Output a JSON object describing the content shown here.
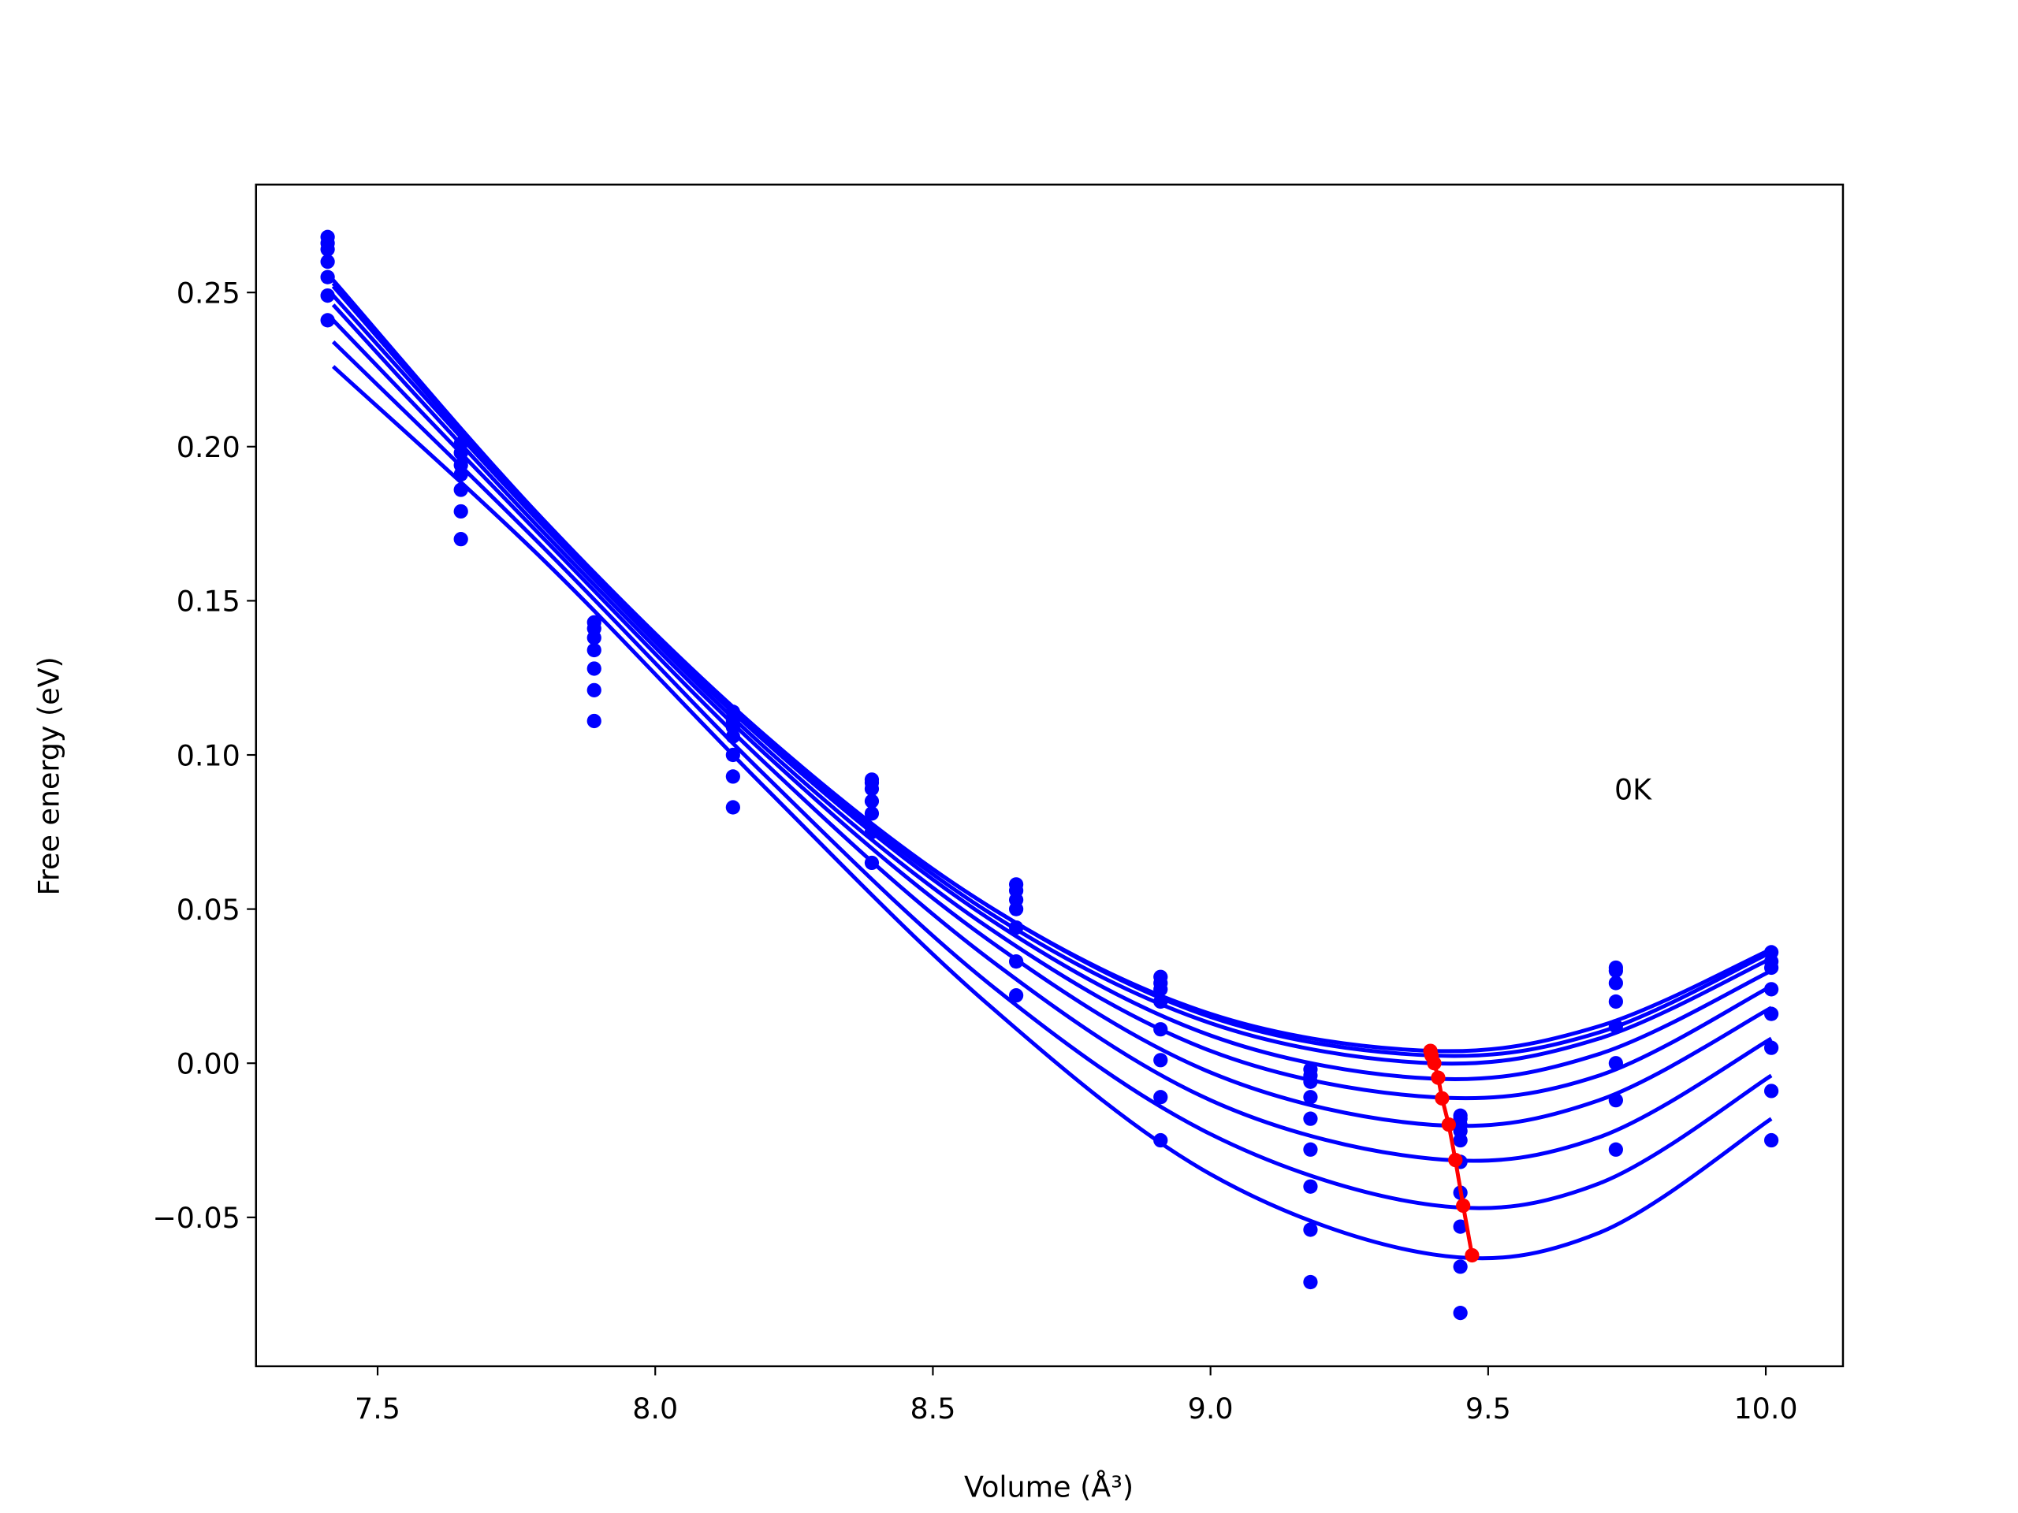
{
  "chart_data": {
    "type": "line",
    "xlabel": "Volume (Å³)",
    "ylabel": "Free energy (eV)",
    "annotation": "0K",
    "xlim": [
      7.281,
      10.139
    ],
    "ylim": [
      -0.0983,
      0.285
    ],
    "xticks": [
      7.5,
      {
        "value": 8,
        "label": "8.0"
      },
      8.5,
      {
        "value": 9,
        "label": "9.0"
      },
      9.5,
      {
        "value": 10,
        "label": "10.0"
      }
    ],
    "yticks": [
      {
        "value": -0.05,
        "label": "−0.05"
      },
      {
        "value": 0,
        "label": "0.00"
      },
      0.05,
      {
        "value": 0.1,
        "label": "0.10"
      },
      0.15,
      {
        "value": 0.2,
        "label": "0.20"
      },
      0.25
    ],
    "series": [
      {
        "style": "points",
        "color": "#0000ff",
        "x": [
          7.41,
          7.41,
          7.41,
          7.41,
          7.41,
          7.41,
          7.41,
          7.65,
          7.65,
          7.65,
          7.65,
          7.65,
          7.65,
          7.65,
          7.89,
          7.89,
          7.89,
          7.89,
          7.89,
          7.89,
          7.89,
          8.14,
          8.14,
          8.14,
          8.14,
          8.14,
          8.14,
          8.14,
          8.39,
          8.39,
          8.39,
          8.39,
          8.39,
          8.39,
          8.39,
          8.65,
          8.65,
          8.65,
          8.65,
          8.65,
          8.65,
          8.65,
          8.91,
          8.91,
          8.91,
          8.91,
          8.91,
          8.91,
          8.91,
          8.91,
          9.18,
          9.18,
          9.18,
          9.18,
          9.18,
          9.18,
          9.18,
          9.18,
          9.18,
          9.45,
          9.45,
          9.45,
          9.45,
          9.45,
          9.45,
          9.45,
          9.45,
          9.45,
          9.45,
          9.73,
          9.73,
          9.73,
          9.73,
          9.73,
          9.73,
          9.73,
          9.73,
          10.01,
          10.01,
          10.01,
          10.01,
          10.01,
          10.01,
          10.01,
          10.01
        ],
        "values": [
          0.268,
          0.266,
          0.264,
          0.26,
          0.255,
          0.249,
          0.241,
          0.201,
          0.198,
          0.194,
          0.191,
          0.186,
          0.179,
          0.17,
          0.143,
          0.141,
          0.138,
          0.134,
          0.128,
          0.121,
          0.111,
          0.114,
          0.111,
          0.109,
          0.106,
          0.1,
          0.093,
          0.083,
          0.092,
          0.091,
          0.089,
          0.085,
          0.081,
          0.075,
          0.065,
          0.058,
          0.056,
          0.053,
          0.05,
          0.044,
          0.033,
          0.022,
          0.028,
          0.026,
          0.024,
          0.02,
          0.011,
          0.001,
          -0.011,
          -0.025,
          -0.002,
          -0.004,
          -0.006,
          -0.011,
          -0.018,
          -0.028,
          -0.04,
          -0.054,
          -0.071,
          -0.017,
          -0.018,
          -0.02,
          -0.022,
          -0.025,
          -0.032,
          -0.042,
          -0.053,
          -0.066,
          -0.081,
          0.031,
          0.03,
          0.026,
          0.02,
          0.012,
          0.0,
          -0.012,
          -0.028,
          0.036,
          0.033,
          0.031,
          0.024,
          0.016,
          0.005,
          -0.009,
          -0.025
        ]
      },
      {
        "style": "line",
        "color": "#0000ff",
        "x": [
          7.42,
          7.8,
          8.2,
          8.6,
          9.0,
          9.4,
          9.7,
          10.01
        ],
        "values": [
          0.254,
          0.176,
          0.106,
          0.051,
          0.016,
          0.004,
          0.012,
          0.037
        ]
      },
      {
        "style": "line",
        "color": "#0000ff",
        "x": [
          7.42,
          7.8,
          8.2,
          8.6,
          9.0,
          9.4,
          9.7,
          10.01
        ],
        "values": [
          0.253,
          0.176,
          0.105,
          0.051,
          0.015,
          0.0025,
          0.01,
          0.036
        ]
      },
      {
        "style": "line",
        "color": "#0000ff",
        "x": [
          7.42,
          7.8,
          8.2,
          8.6,
          9.0,
          9.4,
          9.7,
          10.01
        ],
        "values": [
          0.253,
          0.175,
          0.105,
          0.049,
          0.013,
          0.0,
          0.008,
          0.034
        ]
      },
      {
        "style": "line",
        "color": "#0000ff",
        "x": [
          7.42,
          7.8,
          8.2,
          8.6,
          9.0,
          9.4,
          9.7,
          10.01
        ],
        "values": [
          0.252,
          0.175,
          0.104,
          0.047,
          0.009,
          -0.005,
          0.003,
          0.03
        ]
      },
      {
        "style": "line",
        "color": "#0000ff",
        "x": [
          7.42,
          7.8,
          8.2,
          8.6,
          9.0,
          9.4,
          9.7,
          10.01
        ],
        "values": [
          0.249,
          0.174,
          0.102,
          0.044,
          0.004,
          -0.011,
          -0.004,
          0.025
        ]
      },
      {
        "style": "line",
        "color": "#0000ff",
        "x": [
          7.42,
          7.8,
          8.2,
          8.6,
          9.0,
          9.4,
          9.7,
          10.01
        ],
        "values": [
          0.246,
          0.172,
          0.1,
          0.04,
          -0.003,
          -0.02,
          -0.012,
          0.018
        ]
      },
      {
        "style": "line",
        "color": "#0000ff",
        "x": [
          7.42,
          7.8,
          8.2,
          8.6,
          9.0,
          9.4,
          9.7,
          10.01
        ],
        "values": [
          0.241,
          0.17,
          0.097,
          0.034,
          -0.012,
          -0.031,
          -0.024,
          0.008
        ]
      },
      {
        "style": "line",
        "color": "#0000ff",
        "x": [
          7.42,
          7.8,
          8.2,
          8.6,
          9.0,
          9.4,
          9.7,
          10.01
        ],
        "values": [
          0.234,
          0.167,
          0.093,
          0.026,
          -0.023,
          -0.046,
          -0.039,
          -0.004
        ]
      },
      {
        "style": "line",
        "color": "#0000ff",
        "x": [
          7.42,
          7.8,
          8.2,
          8.6,
          9.0,
          9.4,
          9.7,
          10.01
        ],
        "values": [
          0.226,
          0.163,
          0.089,
          0.019,
          -0.036,
          -0.062,
          -0.055,
          -0.018
        ]
      },
      {
        "style": "line-markers",
        "color": "#ff0000",
        "x": [
          9.396,
          9.398,
          9.403,
          9.41,
          9.417,
          9.429,
          9.441,
          9.455,
          9.471
        ],
        "values": [
          0.004,
          0.0025,
          0.0,
          -0.0047,
          -0.0114,
          -0.0199,
          -0.0314,
          -0.0462,
          -0.0623
        ]
      }
    ]
  }
}
